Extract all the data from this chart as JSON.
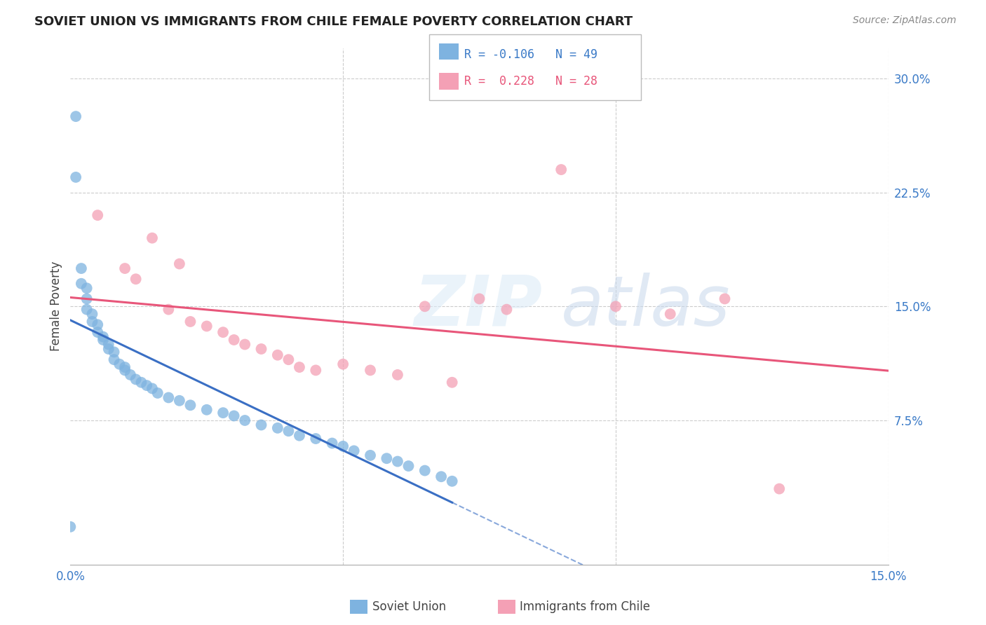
{
  "title": "SOVIET UNION VS IMMIGRANTS FROM CHILE FEMALE POVERTY CORRELATION CHART",
  "source": "Source: ZipAtlas.com",
  "ylabel": "Female Poverty",
  "xlim": [
    0.0,
    0.15
  ],
  "ylim": [
    -0.02,
    0.32
  ],
  "grid_color": "#cccccc",
  "background_color": "#ffffff",
  "soviet_color": "#7eb3e0",
  "chile_color": "#f4a0b5",
  "soviet_line_color": "#3a6fc4",
  "chile_line_color": "#e8567a",
  "legend_line1": "R = -0.106   N = 49",
  "legend_line2": "R =  0.228   N = 28",
  "legend_text_color1": "#3a7ac7",
  "legend_text_color2": "#e8567a",
  "axis_label_color": "#3a7ac7",
  "title_color": "#222222",
  "source_color": "#888888",
  "ylabel_color": "#444444",
  "soviet_x": [
    0.001,
    0.001,
    0.002,
    0.002,
    0.003,
    0.003,
    0.003,
    0.004,
    0.004,
    0.005,
    0.005,
    0.006,
    0.006,
    0.007,
    0.007,
    0.008,
    0.008,
    0.009,
    0.01,
    0.01,
    0.011,
    0.012,
    0.013,
    0.014,
    0.015,
    0.016,
    0.018,
    0.02,
    0.022,
    0.025,
    0.028,
    0.03,
    0.032,
    0.035,
    0.038,
    0.04,
    0.042,
    0.045,
    0.048,
    0.05,
    0.052,
    0.055,
    0.058,
    0.06,
    0.062,
    0.065,
    0.068,
    0.07,
    0.0
  ],
  "soviet_y": [
    0.275,
    0.235,
    0.175,
    0.165,
    0.162,
    0.155,
    0.148,
    0.145,
    0.14,
    0.138,
    0.133,
    0.13,
    0.128,
    0.125,
    0.122,
    0.12,
    0.115,
    0.112,
    0.11,
    0.108,
    0.105,
    0.102,
    0.1,
    0.098,
    0.096,
    0.093,
    0.09,
    0.088,
    0.085,
    0.082,
    0.08,
    0.078,
    0.075,
    0.072,
    0.07,
    0.068,
    0.065,
    0.063,
    0.06,
    0.058,
    0.055,
    0.052,
    0.05,
    0.048,
    0.045,
    0.042,
    0.038,
    0.035,
    0.005
  ],
  "chile_x": [
    0.005,
    0.01,
    0.012,
    0.015,
    0.018,
    0.02,
    0.022,
    0.025,
    0.028,
    0.03,
    0.032,
    0.035,
    0.038,
    0.04,
    0.042,
    0.045,
    0.05,
    0.055,
    0.06,
    0.065,
    0.07,
    0.075,
    0.08,
    0.09,
    0.1,
    0.11,
    0.12,
    0.13
  ],
  "chile_y": [
    0.21,
    0.175,
    0.168,
    0.195,
    0.148,
    0.178,
    0.14,
    0.137,
    0.133,
    0.128,
    0.125,
    0.122,
    0.118,
    0.115,
    0.11,
    0.108,
    0.112,
    0.108,
    0.105,
    0.15,
    0.1,
    0.155,
    0.148,
    0.24,
    0.15,
    0.145,
    0.155,
    0.03
  ]
}
